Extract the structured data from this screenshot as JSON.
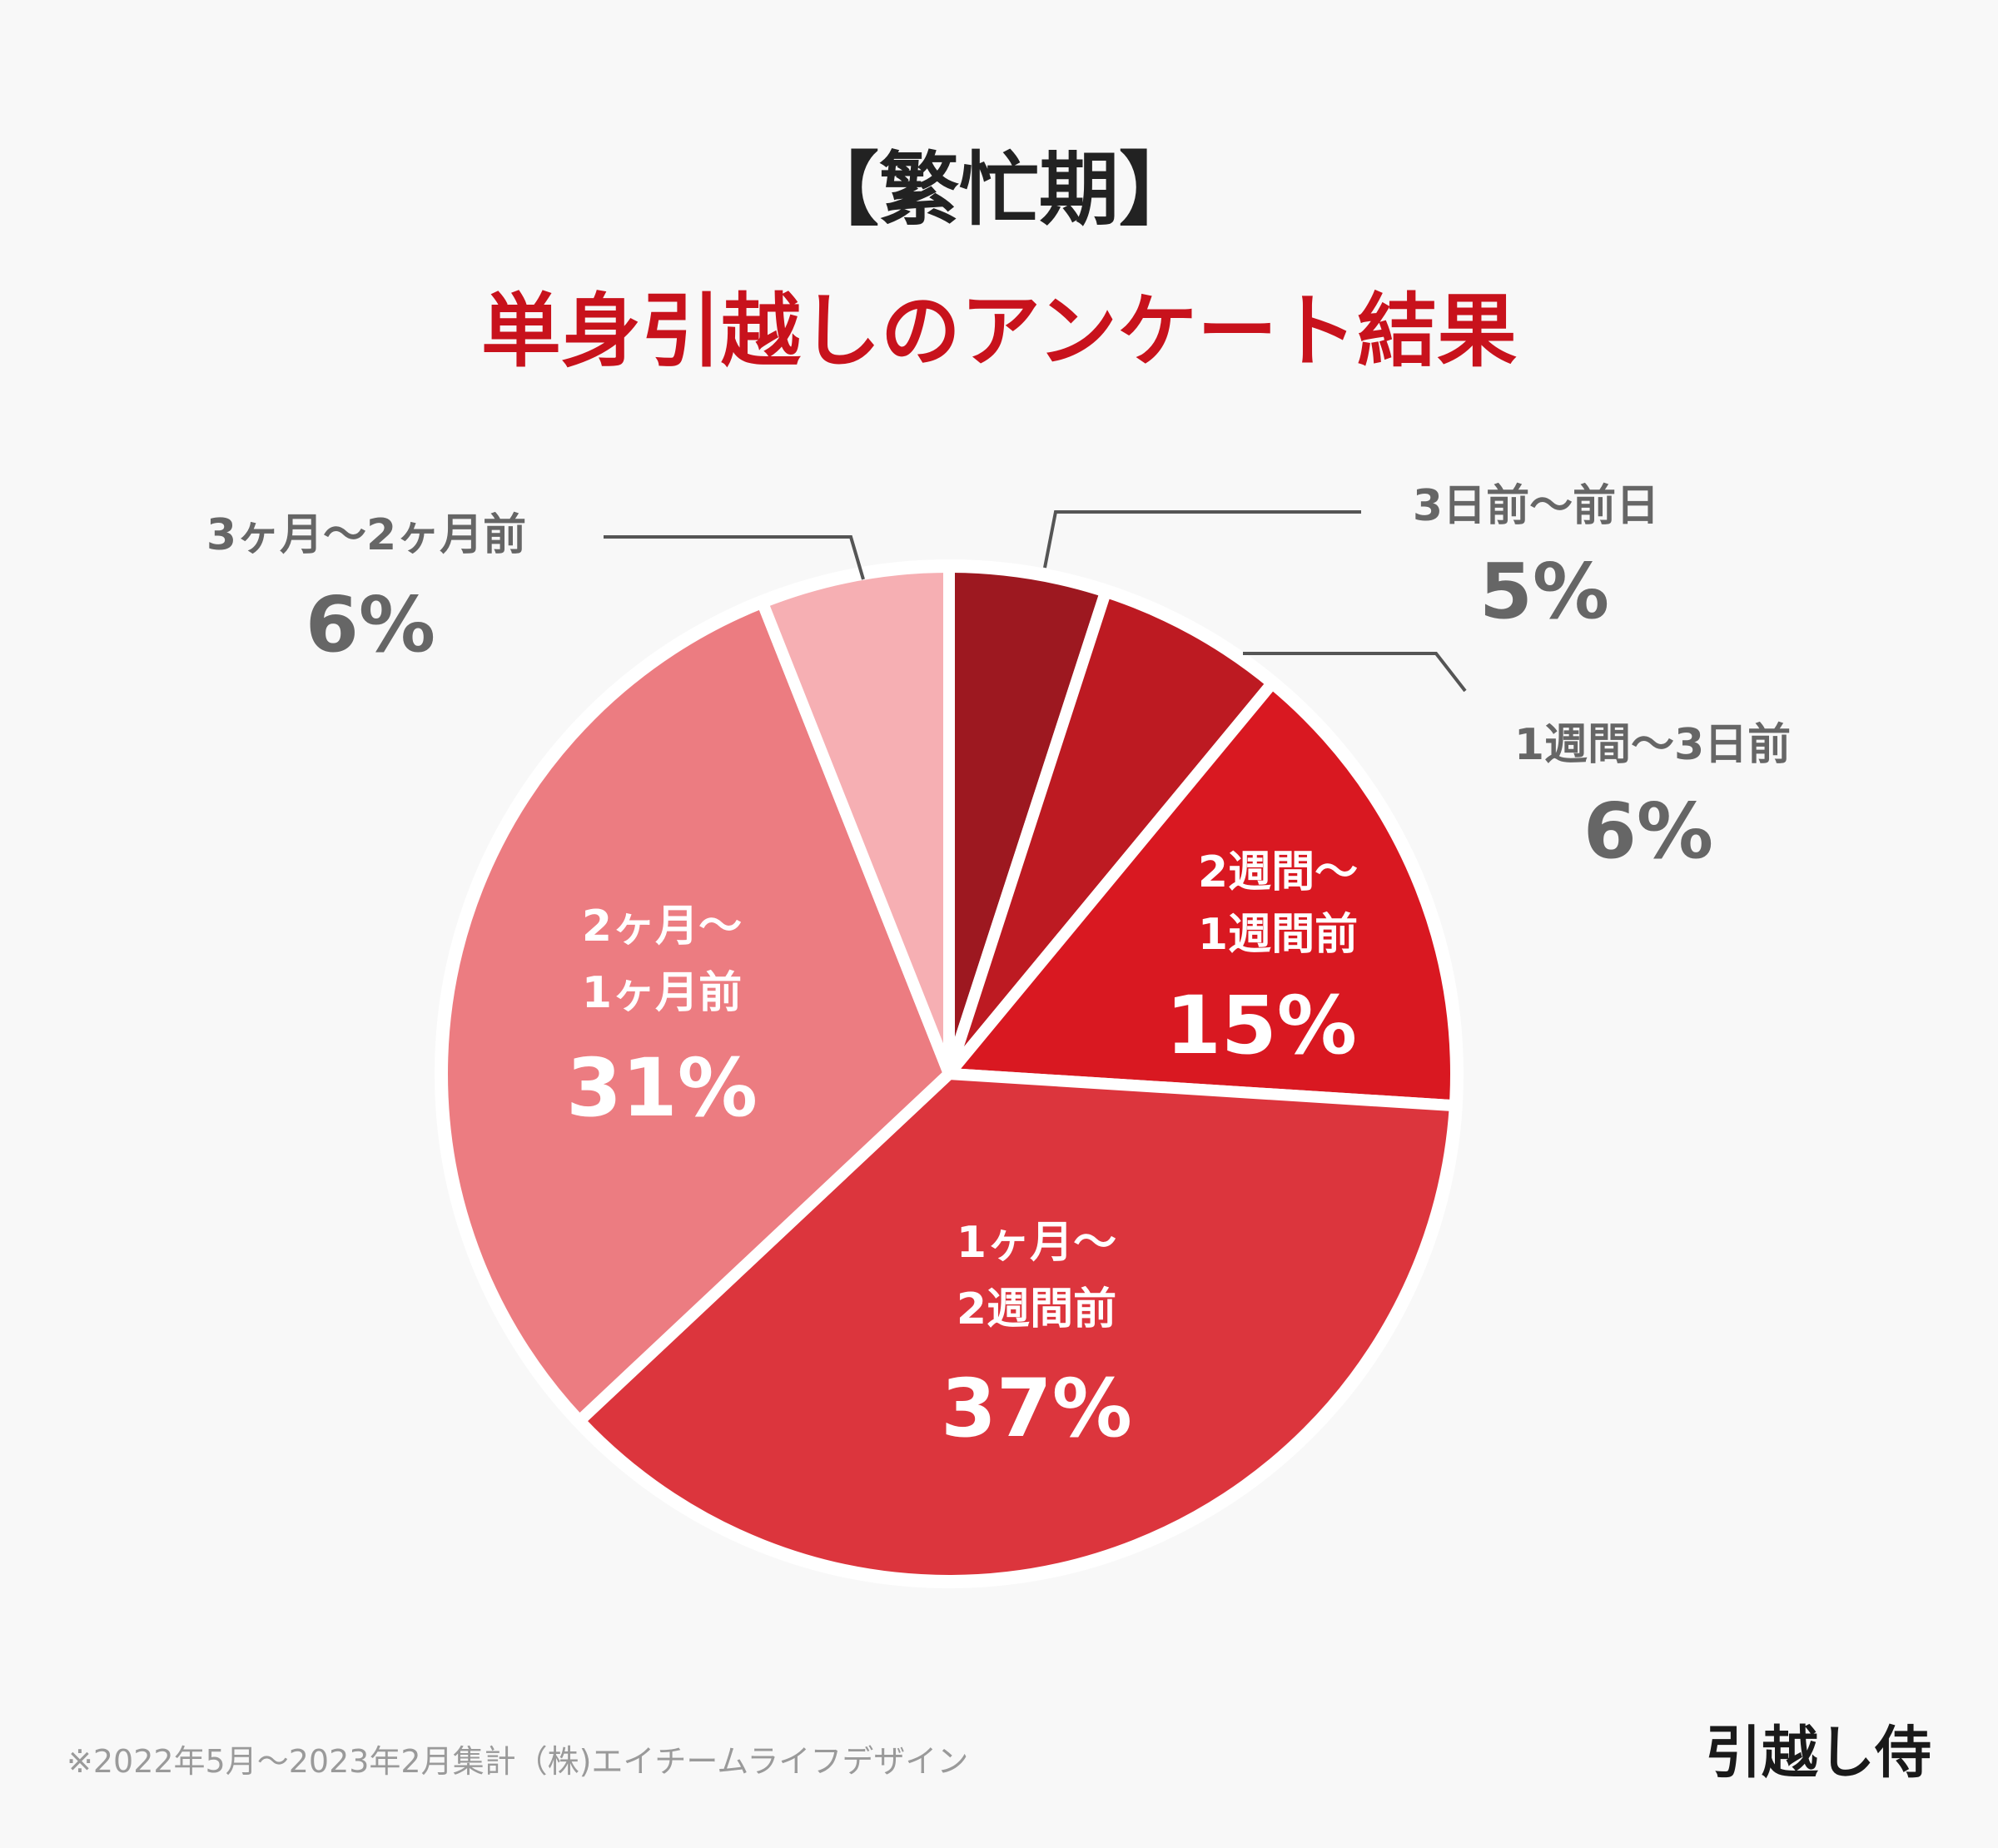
{
  "header": {
    "title": "【繁忙期】",
    "subtitle": "単身引越しのアンケート結果"
  },
  "chart_data": {
    "type": "pie",
    "unit": "%",
    "slices": [
      {
        "label": "3日前〜前日",
        "value": 5,
        "color": "#9d1820"
      },
      {
        "label": "1週間〜3日前",
        "value": 6,
        "color": "#bd1a22"
      },
      {
        "label": "2週間〜1週間前",
        "value": 15,
        "color": "#d91821"
      },
      {
        "label": "1ヶ月〜2週間前",
        "value": 37,
        "color": "#dc353d"
      },
      {
        "label": "2ヶ月〜1ヶ月前",
        "value": 31,
        "color": "#ec7c81"
      },
      {
        "label": "3ヶ月〜2ヶ月前",
        "value": 6,
        "color": "#f6afb3"
      }
    ],
    "label_texts": {
      "s1_label": "3日前〜前日",
      "s1_pct": "5%",
      "s2_label": "1週間〜3日前",
      "s2_pct": "6%",
      "s3_line1": "2週間〜",
      "s3_line2": "1週間前",
      "s3_pct": "15%",
      "s4_line1": "1ヶ月〜",
      "s4_line2": "2週間前",
      "s4_pct": "37%",
      "s5_line1": "2ヶ月〜",
      "s5_line2": "1ヶ月前",
      "s5_pct": "31%",
      "s6_label": "3ヶ月〜2ヶ月前",
      "s6_pct": "6%"
    }
  },
  "footer": {
    "note": "※2022年5月〜2023年2月集計（株)エイチームライフデザイン",
    "brand": "引越し侍"
  }
}
